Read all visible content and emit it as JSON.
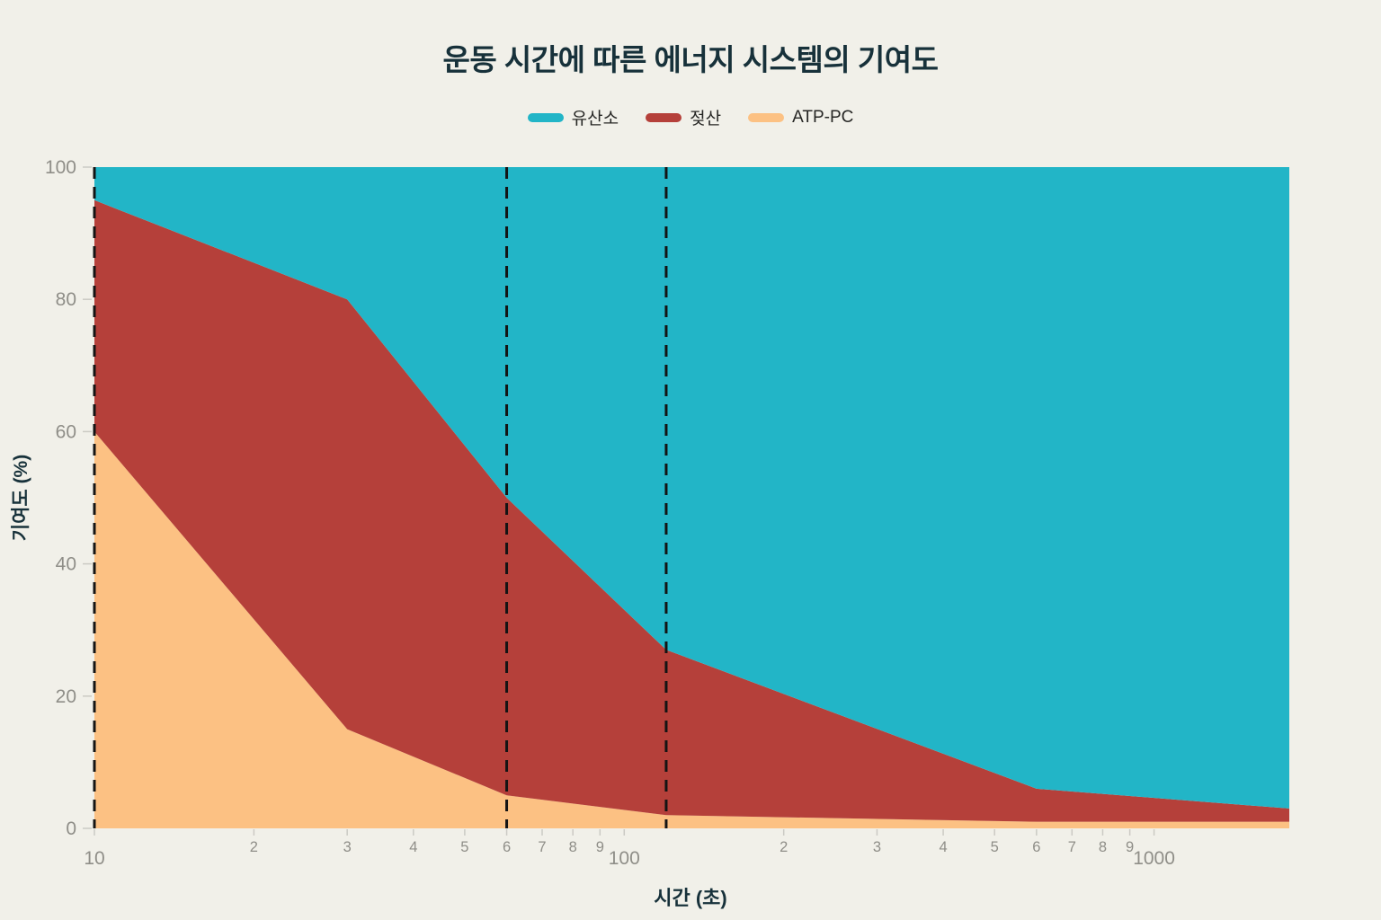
{
  "header": {
    "title": "운동 시간에 따른 에너지 시스템의 기여도"
  },
  "legend": {
    "items": [
      {
        "label": "유산소",
        "color": "#22b5c7"
      },
      {
        "label": "젖산",
        "color": "#b5403a"
      },
      {
        "label": "ATP-PC",
        "color": "#fcc183"
      }
    ]
  },
  "axes": {
    "x_title": "시간 (초)",
    "y_title": "기여도 (%)"
  },
  "chart_data": {
    "type": "area",
    "stacked": true,
    "x_scale": "log",
    "grid": false,
    "legend_position": "top-center",
    "title": "운동 시간에 따른 에너지 시스템의 기여도",
    "xlabel": "시간 (초)",
    "ylabel": "기여도 (%)",
    "xlim": [
      10,
      1800
    ],
    "ylim": [
      0,
      100
    ],
    "x": [
      10,
      30,
      60,
      120,
      600,
      1800
    ],
    "series": [
      {
        "name": "ATP-PC",
        "color": "#fcc183",
        "values": [
          60,
          15,
          5,
          2,
          1,
          1
        ]
      },
      {
        "name": "젖산",
        "color": "#b5403a",
        "values": [
          35,
          65,
          45,
          25,
          5,
          2
        ]
      },
      {
        "name": "유산소",
        "color": "#22b5c7",
        "values": [
          5,
          20,
          50,
          73,
          94,
          97
        ]
      }
    ],
    "legend_order": [
      "유산소",
      "젖산",
      "ATP-PC"
    ],
    "dashed_guides_x": [
      10,
      60,
      120
    ],
    "y_ticks": [
      {
        "v": 0,
        "label": "0"
      },
      {
        "v": 20,
        "label": "20"
      },
      {
        "v": 40,
        "label": "40"
      },
      {
        "v": 60,
        "label": "60"
      },
      {
        "v": 80,
        "label": "80"
      },
      {
        "v": 100,
        "label": "100"
      }
    ],
    "x_ticks": [
      {
        "v": 10,
        "label": "10",
        "major": true
      },
      {
        "v": 20,
        "label": "2"
      },
      {
        "v": 30,
        "label": "3"
      },
      {
        "v": 40,
        "label": "4"
      },
      {
        "v": 50,
        "label": "5"
      },
      {
        "v": 60,
        "label": "6"
      },
      {
        "v": 70,
        "label": "7"
      },
      {
        "v": 80,
        "label": "8"
      },
      {
        "v": 90,
        "label": "9"
      },
      {
        "v": 100,
        "label": "100",
        "major": true
      },
      {
        "v": 200,
        "label": "2"
      },
      {
        "v": 300,
        "label": "3"
      },
      {
        "v": 400,
        "label": "4"
      },
      {
        "v": 500,
        "label": "5"
      },
      {
        "v": 600,
        "label": "6"
      },
      {
        "v": 700,
        "label": "7"
      },
      {
        "v": 800,
        "label": "8"
      },
      {
        "v": 900,
        "label": "9"
      },
      {
        "v": 1000,
        "label": "1000",
        "major": true
      }
    ]
  },
  "colors": {
    "background": "#f1f0e9",
    "title_text": "#17313a",
    "tick_text": "#8f8e88",
    "tick_mark": "#cbcac4",
    "guide_line": "#141414"
  }
}
